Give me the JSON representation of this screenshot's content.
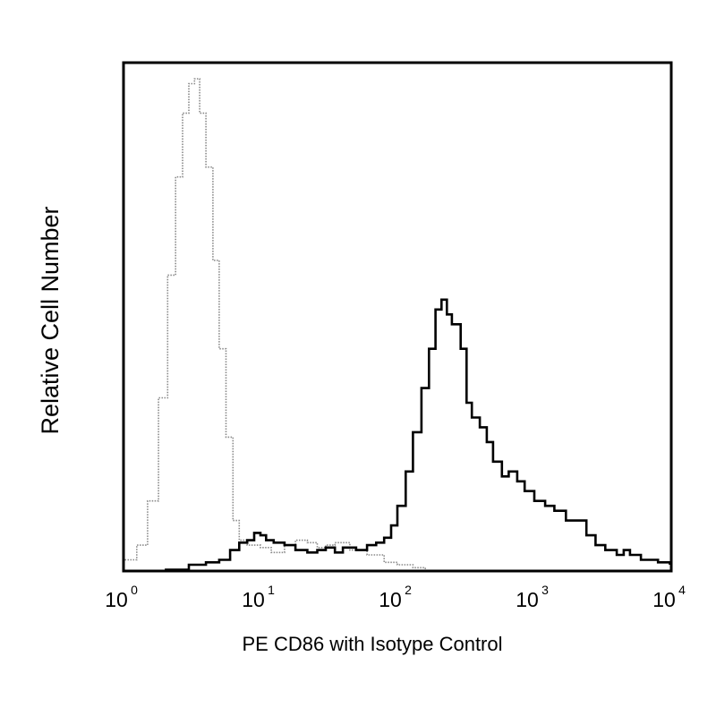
{
  "chart_data": {
    "type": "histogram-overlay",
    "x_scale": "log",
    "xlim": [
      1,
      10000
    ],
    "xlabel": "PE CD86 with Isotype Control",
    "ylabel": "Relative Cell Number",
    "x_ticks": [
      {
        "value": 1,
        "base": "10",
        "exp": "0"
      },
      {
        "value": 10,
        "base": "10",
        "exp": "1"
      },
      {
        "value": 100,
        "base": "10",
        "exp": "2"
      },
      {
        "value": 1000,
        "base": "10",
        "exp": "3"
      },
      {
        "value": 10000,
        "base": "10",
        "exp": "4"
      }
    ],
    "y_ticks_shown": false,
    "ylim": [
      0,
      1
    ],
    "series": [
      {
        "style": "dotted",
        "color": "#888888",
        "points": [
          [
            1.0,
            0.02
          ],
          [
            1.25,
            0.05
          ],
          [
            1.5,
            0.14
          ],
          [
            1.8,
            0.35
          ],
          [
            2.1,
            0.6
          ],
          [
            2.4,
            0.8
          ],
          [
            2.7,
            0.93
          ],
          [
            3.0,
            0.99
          ],
          [
            3.3,
            1.0
          ],
          [
            3.6,
            0.93
          ],
          [
            4.0,
            0.82
          ],
          [
            4.5,
            0.63
          ],
          [
            5.0,
            0.45
          ],
          [
            5.6,
            0.27
          ],
          [
            6.3,
            0.1
          ],
          [
            7.0,
            0.06
          ],
          [
            8.0,
            0.05
          ],
          [
            10,
            0.045
          ],
          [
            12,
            0.035
          ],
          [
            15,
            0.05
          ],
          [
            18,
            0.06
          ],
          [
            22,
            0.055
          ],
          [
            26,
            0.045
          ],
          [
            30,
            0.05
          ],
          [
            35,
            0.055
          ],
          [
            45,
            0.04
          ],
          [
            60,
            0.03
          ],
          [
            80,
            0.015
          ],
          [
            100,
            0.01
          ],
          [
            130,
            0.004
          ],
          [
            160,
            0.0
          ]
        ]
      },
      {
        "style": "solid",
        "color": "#000000",
        "points": [
          [
            2.0,
            0.0
          ],
          [
            3.0,
            0.01
          ],
          [
            4.0,
            0.015
          ],
          [
            5.0,
            0.02
          ],
          [
            6.0,
            0.04
          ],
          [
            7.0,
            0.055
          ],
          [
            8.0,
            0.06
          ],
          [
            9.0,
            0.075
          ],
          [
            10.0,
            0.07
          ],
          [
            11.0,
            0.06
          ],
          [
            12.5,
            0.055
          ],
          [
            15,
            0.05
          ],
          [
            18,
            0.04
          ],
          [
            22,
            0.035
          ],
          [
            26,
            0.04
          ],
          [
            30,
            0.045
          ],
          [
            35,
            0.035
          ],
          [
            40,
            0.045
          ],
          [
            50,
            0.04
          ],
          [
            60,
            0.05
          ],
          [
            70,
            0.055
          ],
          [
            80,
            0.065
          ],
          [
            90,
            0.09
          ],
          [
            100,
            0.13
          ],
          [
            115,
            0.2
          ],
          [
            130,
            0.28
          ],
          [
            150,
            0.37
          ],
          [
            170,
            0.45
          ],
          [
            190,
            0.53
          ],
          [
            210,
            0.55
          ],
          [
            230,
            0.52
          ],
          [
            250,
            0.5
          ],
          [
            270,
            0.5
          ],
          [
            290,
            0.45
          ],
          [
            320,
            0.34
          ],
          [
            350,
            0.31
          ],
          [
            400,
            0.29
          ],
          [
            450,
            0.26
          ],
          [
            500,
            0.22
          ],
          [
            580,
            0.19
          ],
          [
            650,
            0.2
          ],
          [
            750,
            0.18
          ],
          [
            850,
            0.16
          ],
          [
            1000,
            0.14
          ],
          [
            1200,
            0.13
          ],
          [
            1400,
            0.12
          ],
          [
            1700,
            0.1
          ],
          [
            2000,
            0.1
          ],
          [
            2400,
            0.07
          ],
          [
            2800,
            0.05
          ],
          [
            3300,
            0.04
          ],
          [
            4000,
            0.03
          ],
          [
            4500,
            0.04
          ],
          [
            5000,
            0.03
          ],
          [
            6000,
            0.02
          ],
          [
            8000,
            0.015
          ],
          [
            10000,
            0.01
          ]
        ]
      }
    ]
  }
}
